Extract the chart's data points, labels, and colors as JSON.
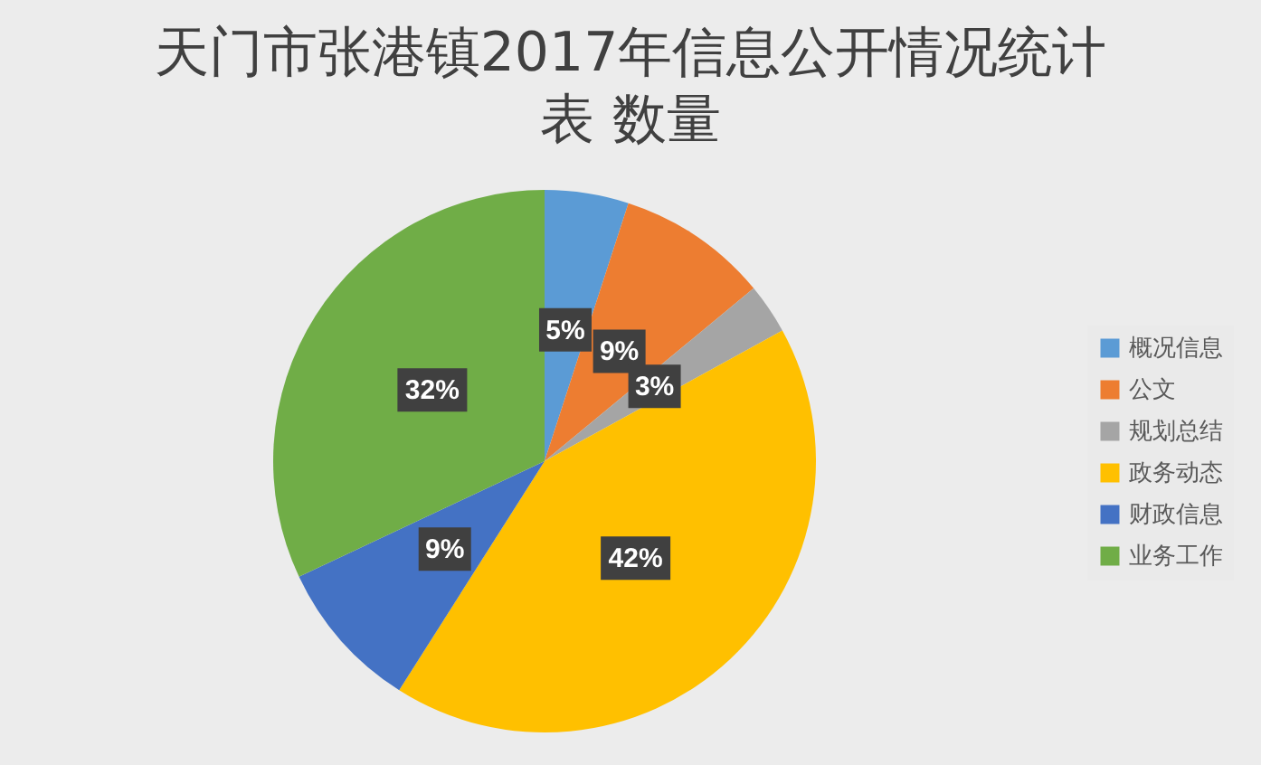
{
  "chart_data": {
    "type": "pie",
    "title": "天门市张港镇2017年信息公开情况统计表 数量",
    "categories": [
      "概况信息",
      "公文",
      "规划总结",
      "政务动态",
      "财政信息",
      "业务工作"
    ],
    "values": [
      5,
      9,
      3,
      42,
      9,
      32
    ],
    "colors": [
      "#5b9bd5",
      "#ed7d31",
      "#a5a5a5",
      "#ffc000",
      "#4472c4",
      "#70ad47"
    ],
    "value_labels": [
      "5%",
      "9%",
      "3%",
      "42%",
      "9%",
      "32%"
    ],
    "legend": "right"
  }
}
